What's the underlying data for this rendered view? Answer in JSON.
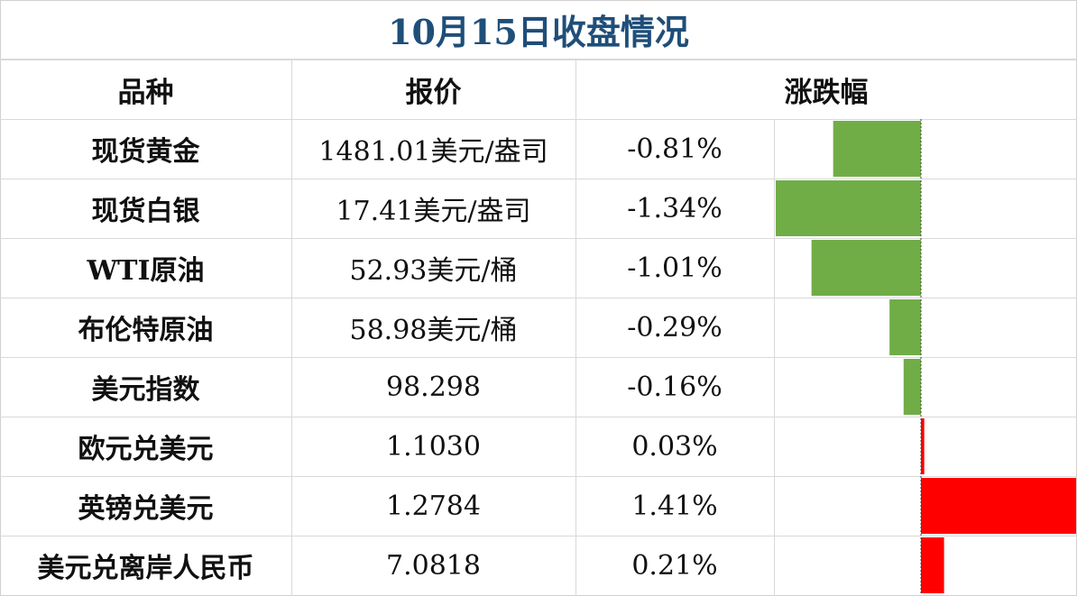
{
  "title": "10月15日收盘情况",
  "headers": {
    "name": "品种",
    "price": "报价",
    "change": "涨跌幅"
  },
  "rows": [
    {
      "name": "现货黄金",
      "price": "1481.01美元/盎司",
      "change": "-0.81%"
    },
    {
      "name": "现货白银",
      "price": "17.41美元/盎司",
      "change": "-1.34%"
    },
    {
      "name": "WTI原油",
      "price": "52.93美元/桶",
      "change": "-1.01%"
    },
    {
      "name": "布伦特原油",
      "price": "58.98美元/桶",
      "change": "-0.29%"
    },
    {
      "name": "美元指数",
      "price": "98.298",
      "change": "-0.16%"
    },
    {
      "name": "欧元兑美元",
      "price": "1.1030",
      "change": "0.03%"
    },
    {
      "name": "英镑兑美元",
      "price": "1.2784",
      "change": "1.41%"
    },
    {
      "name": "美元兑离岸人民币",
      "price": "7.0818",
      "change": "0.21%"
    }
  ],
  "colors": {
    "title": "#1f4e79",
    "negative": "#70ad47",
    "positive": "#ff0000",
    "grid": "#d9d9d9"
  },
  "chart_data": {
    "type": "bar",
    "orientation": "horizontal",
    "categories": [
      "现货黄金",
      "现货白银",
      "WTI原油",
      "布伦特原油",
      "美元指数",
      "欧元兑美元",
      "英镑兑美元",
      "美元兑离岸人民币"
    ],
    "values": [
      -0.81,
      -1.34,
      -1.01,
      -0.29,
      -0.16,
      0.03,
      1.41,
      0.21
    ],
    "unit": "%",
    "xlim": [
      -1.34,
      1.41
    ]
  }
}
